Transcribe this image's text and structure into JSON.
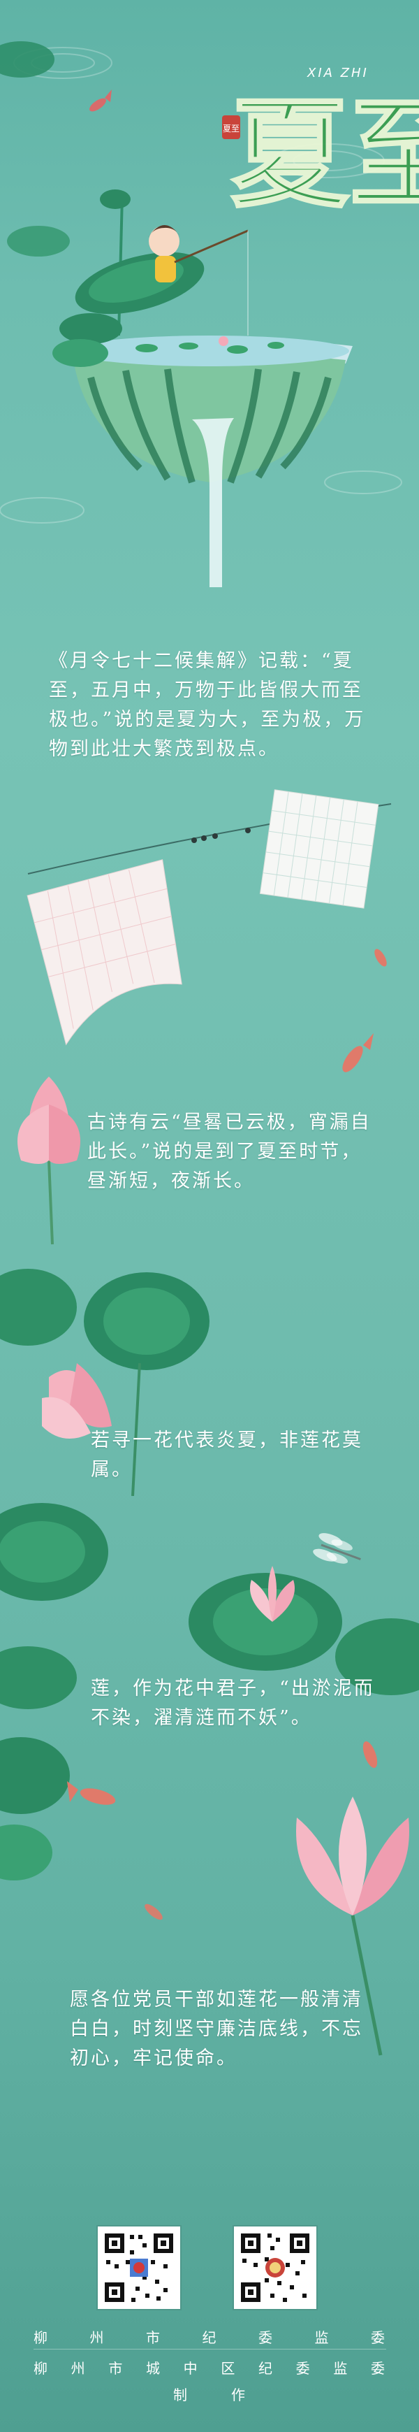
{
  "title": {
    "pinyin": "XIA ZHI",
    "main": "夏至",
    "seal": "夏至"
  },
  "paragraphs": [
    "《月令七十二候集解》记载：“夏至，五月中，万物于此皆假大而至极也。”说的是夏为大，至为极，万物到此壮大繁茂到极点。",
    "古诗有云“昼晷已云极，宵漏自此长。”说的是到了夏至时节，昼渐短，夜渐长。",
    "若寻一花代表炎夏，非莲花莫属。",
    "莲，作为花中君子，“出淤泥而不染，濯清涟而不妖”。",
    "愿各位党员干部如莲花一般清清白白，时刻坚守廉洁底线，不忘初心，牢记使命。"
  ],
  "footer": {
    "line1": "柳州市纪委监委",
    "line2": "柳州市城中区纪委监委",
    "line3": "制作"
  },
  "colors": {
    "water": "#6ebdb0",
    "lotus_pink": "#f3a9b8",
    "leaf_green": "#2f8f6a",
    "text": "#ffffff",
    "title_green": "#3a9d4f"
  },
  "icons": {
    "qr1": "qr-code-icon",
    "qr2": "qr-code-icon",
    "seal": "seal-stamp-icon"
  }
}
